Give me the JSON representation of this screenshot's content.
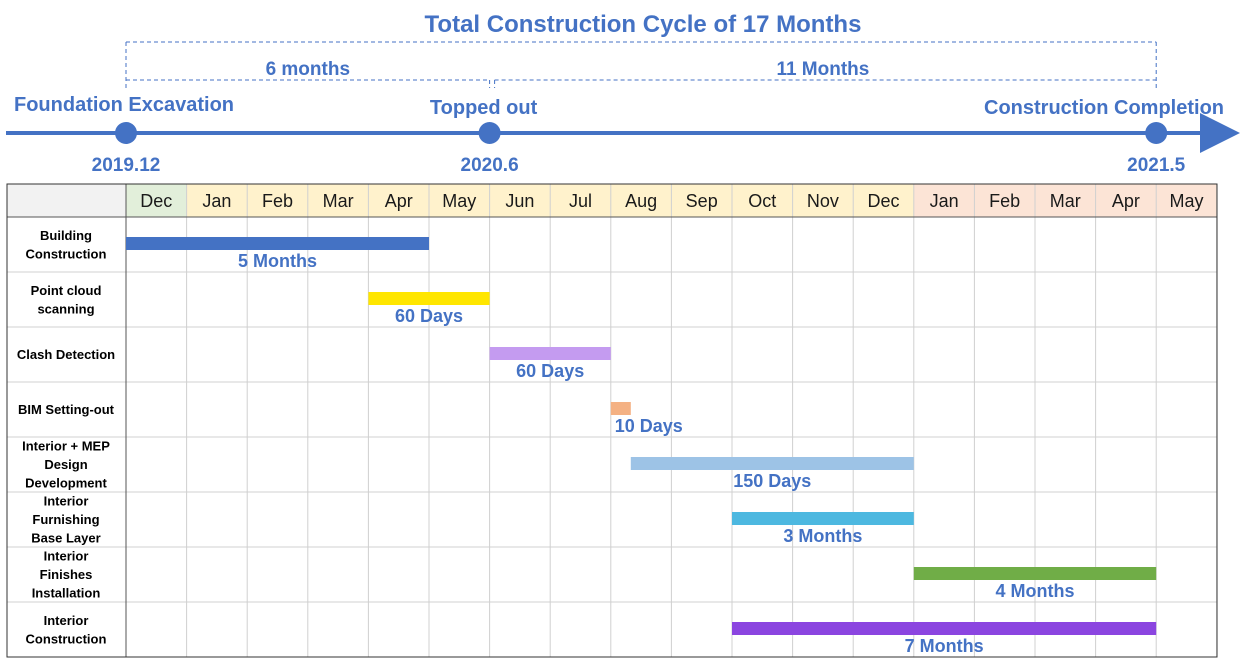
{
  "chart_data": {
    "type": "gantt",
    "title": "Total Construction Cycle of 17 Months",
    "spans": [
      {
        "label": "6 months",
        "from": 0,
        "to": 6
      },
      {
        "label": "11 Months",
        "from": 6,
        "to": 17
      }
    ],
    "milestones": [
      {
        "name": "Foundation Excavation",
        "date": "2019.12",
        "month_index": 0
      },
      {
        "name": "Topped out",
        "date": "2020.6",
        "month_index": 6
      },
      {
        "name": "Construction Completion",
        "date": "2021.5",
        "month_index": 17
      }
    ],
    "months": [
      {
        "label": "Dec",
        "group": "2019"
      },
      {
        "label": "Jan",
        "group": "2020"
      },
      {
        "label": "Feb",
        "group": "2020"
      },
      {
        "label": "Mar",
        "group": "2020"
      },
      {
        "label": "Apr",
        "group": "2020"
      },
      {
        "label": "May",
        "group": "2020"
      },
      {
        "label": "Jun",
        "group": "2020"
      },
      {
        "label": "Jul",
        "group": "2020"
      },
      {
        "label": "Aug",
        "group": "2020"
      },
      {
        "label": "Sep",
        "group": "2020"
      },
      {
        "label": "Oct",
        "group": "2020"
      },
      {
        "label": "Nov",
        "group": "2020"
      },
      {
        "label": "Dec",
        "group": "2020"
      },
      {
        "label": "Jan",
        "group": "2021"
      },
      {
        "label": "Feb",
        "group": "2021"
      },
      {
        "label": "Mar",
        "group": "2021"
      },
      {
        "label": "Apr",
        "group": "2021"
      },
      {
        "label": "May",
        "group": "2021"
      }
    ],
    "group_colors": {
      "2019": "#E2EFDA",
      "2020": "#FFF2CC",
      "2021": "#FCE4D6"
    },
    "tasks": [
      {
        "lines": [
          "Building",
          "Construction"
        ],
        "start": 0,
        "end": 5,
        "color": "#4472C4",
        "duration": "5  Months"
      },
      {
        "lines": [
          "Point cloud",
          "scanning"
        ],
        "start": 4,
        "end": 6,
        "color": "#FFE600",
        "duration": "60 Days"
      },
      {
        "lines": [
          "Clash Detection"
        ],
        "start": 6,
        "end": 8,
        "color": "#C49BF0",
        "duration": "60 Days"
      },
      {
        "lines": [
          "BIM Setting-out"
        ],
        "start": 8,
        "end": 8.33,
        "color": "#F4B183",
        "duration": "10 Days"
      },
      {
        "lines": [
          "Interior + MEP",
          "Design",
          "Development"
        ],
        "start": 8.33,
        "end": 13,
        "color": "#9DC3E6",
        "duration": "150 Days"
      },
      {
        "lines": [
          "Interior",
          "Furnishing",
          "Base Layer"
        ],
        "start": 10,
        "end": 13,
        "color": "#4DB8E0",
        "duration": "3 Months"
      },
      {
        "lines": [
          "Interior",
          "Finishes",
          "Installation"
        ],
        "start": 13,
        "end": 17,
        "color": "#70AD47",
        "duration": "4 Months"
      },
      {
        "lines": [
          "Interior",
          "Construction"
        ],
        "start": 10,
        "end": 17,
        "color": "#8B45E0",
        "duration": "7 Months"
      }
    ]
  }
}
